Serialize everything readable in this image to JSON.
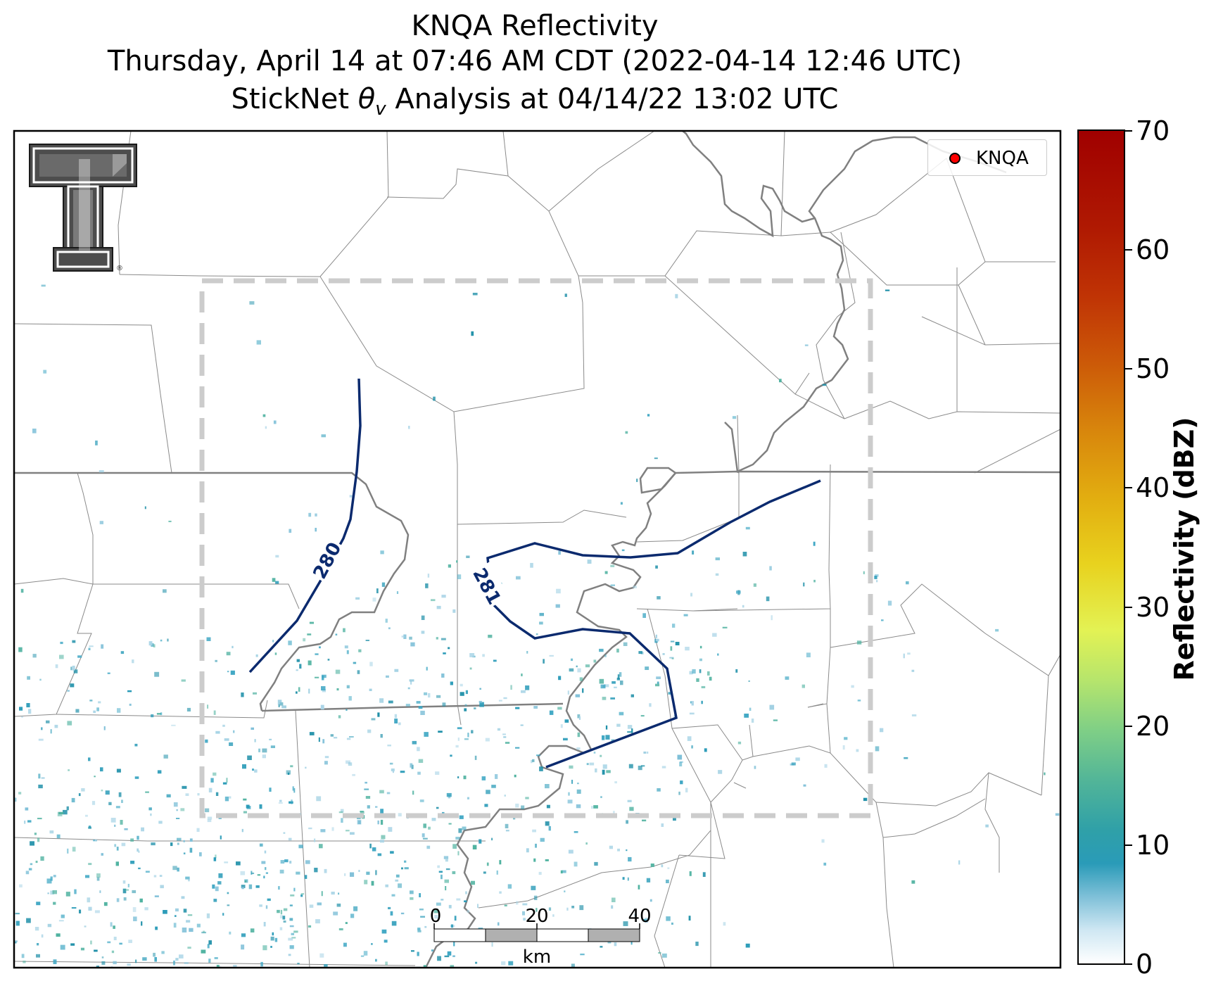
{
  "title": {
    "line1": "KNQA Reflectivity",
    "line2": "Thursday, April 14 at 07:46 AM CDT (2022-04-14 12:46 UTC)",
    "line3_prefix": "StickNet ",
    "line3_theta": "θ",
    "line3_sub": "v",
    "line3_suffix": " Analysis at 04/14/22 13:02 UTC"
  },
  "legend": {
    "label": "KNQA",
    "marker_color": "#ff0000"
  },
  "contours": [
    {
      "label": "280",
      "color": "#0b2a6e"
    },
    {
      "label": "281",
      "color": "#0b2a6e"
    }
  ],
  "scale_bar": {
    "ticks": [
      "0",
      "20",
      "40"
    ],
    "unit": "km"
  },
  "colorbar": {
    "title": "Reflectivity (dBZ)",
    "range": [
      0,
      70
    ],
    "ticks": [
      "70",
      "60",
      "50",
      "40",
      "30",
      "20",
      "10",
      "0"
    ]
  },
  "logo": {
    "name": "Texas Tech Double T",
    "mark": "®"
  },
  "colors": {
    "state_border": "#808080",
    "county_border": "#888888",
    "analysis_box": "#cccccc",
    "contour": "#0b2a6e",
    "echo": "#2a9bb8"
  }
}
